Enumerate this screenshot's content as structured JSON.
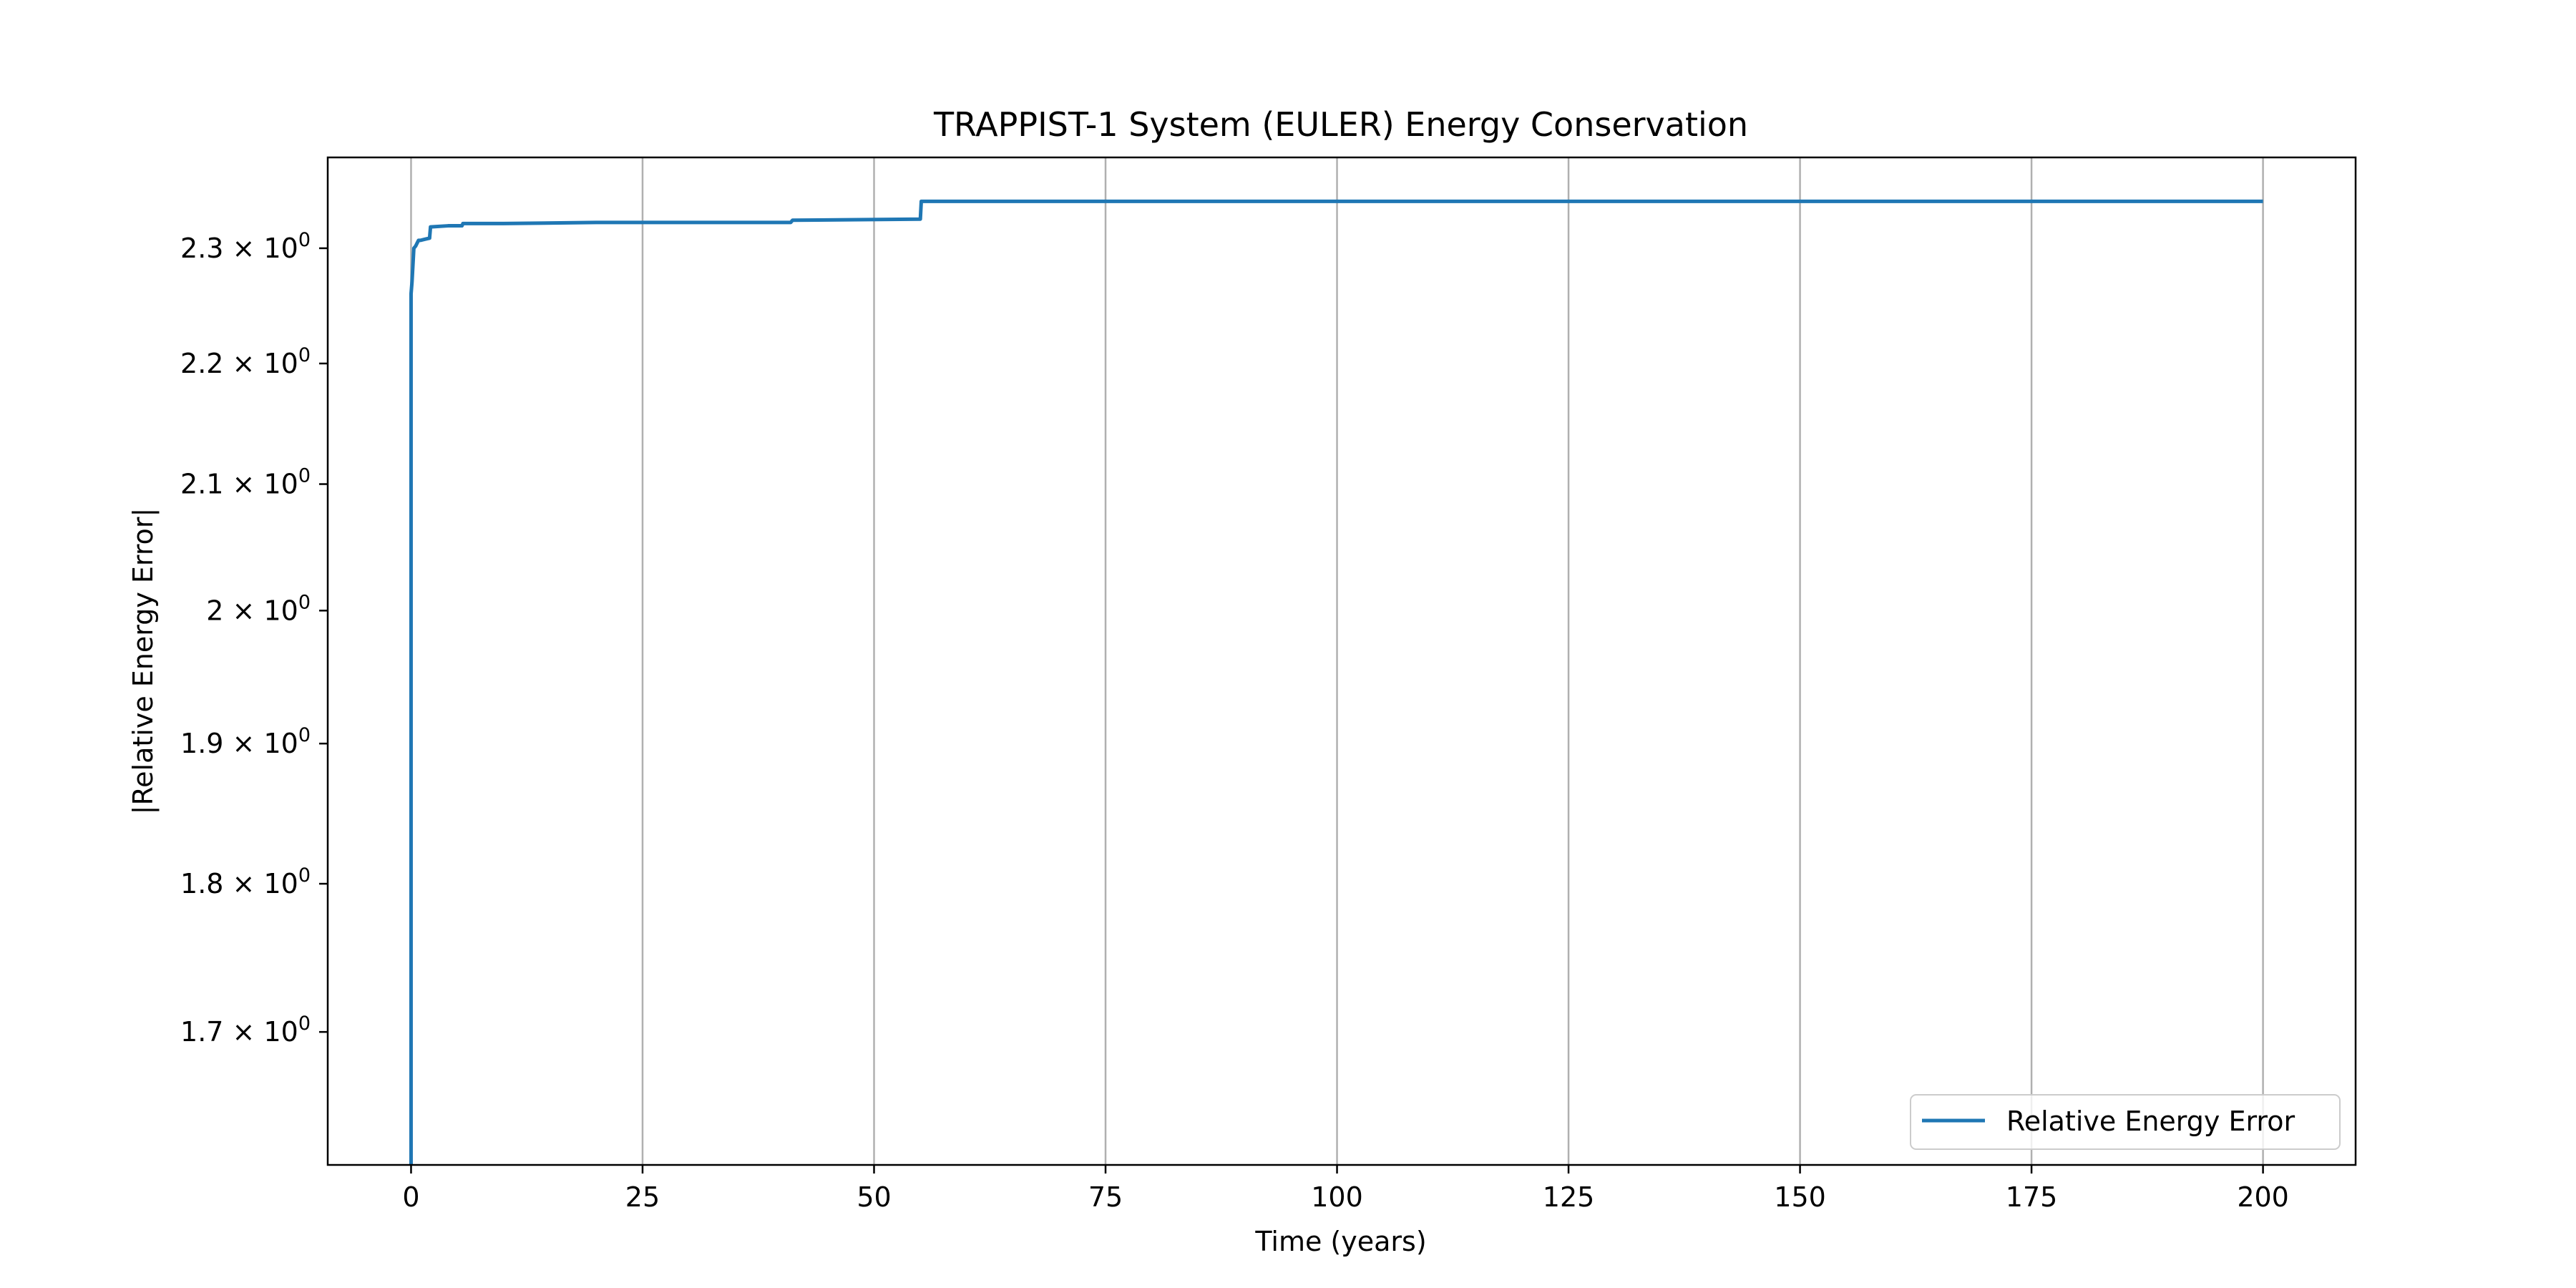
{
  "chart_data": {
    "type": "line",
    "title": "TRAPPIST-1 System (EULER) Energy Conservation",
    "xlabel": "Time (years)",
    "ylabel": "|Relative Energy Error|",
    "xlim": [
      -9,
      210
    ],
    "ylim": [
      1.615,
      2.382
    ],
    "yscale": "log",
    "grid": "x-only",
    "legend": "lower-right",
    "x_ticks": [
      0,
      25,
      50,
      75,
      100,
      125,
      150,
      175,
      200
    ],
    "x_tick_labels": [
      "0",
      "25",
      "50",
      "75",
      "100",
      "125",
      "150",
      "175",
      "200"
    ],
    "y_ticks": [
      1.7,
      1.8,
      1.9,
      2.0,
      2.1,
      2.2,
      2.3
    ],
    "y_tick_labels": [
      {
        "mantissa": "1.7",
        "base": "10",
        "exp": "0"
      },
      {
        "mantissa": "1.8",
        "base": "10",
        "exp": "0"
      },
      {
        "mantissa": "1.9",
        "base": "10",
        "exp": "0"
      },
      {
        "mantissa": "2",
        "base": "10",
        "exp": "0"
      },
      {
        "mantissa": "2.1",
        "base": "10",
        "exp": "0"
      },
      {
        "mantissa": "2.2",
        "base": "10",
        "exp": "0"
      },
      {
        "mantissa": "2.3",
        "base": "10",
        "exp": "0"
      }
    ],
    "color": "#1f77b4",
    "series": [
      {
        "name": "Relative Energy Error",
        "x": [
          0,
          0,
          0.1,
          0.3,
          0.5,
          0.8,
          1.0,
          1.5,
          2.0,
          2.1,
          4.0,
          5.5,
          5.6,
          10,
          20,
          41,
          41.2,
          55,
          55.1,
          80,
          100,
          150,
          200
        ],
        "y": [
          1.615,
          2.26,
          2.27,
          2.3,
          2.302,
          2.307,
          2.307,
          2.308,
          2.309,
          2.319,
          2.32,
          2.32,
          2.322,
          2.322,
          2.323,
          2.323,
          2.325,
          2.326,
          2.342,
          2.342,
          2.342,
          2.342,
          2.342
        ]
      }
    ]
  }
}
